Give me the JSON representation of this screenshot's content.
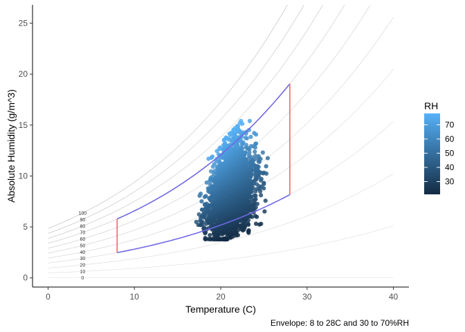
{
  "chart_data": {
    "type": "scatter",
    "title": "",
    "xlabel": "Temperature (C)",
    "ylabel": "Absolute Humidity (g/m^3)",
    "caption": "Envelope: 8 to 28C and 30 to 70%RH",
    "xlim": [
      -1.8,
      41.8
    ],
    "ylim": [
      -0.9,
      26.8
    ],
    "x_ticks": [
      0,
      10,
      20,
      30,
      40
    ],
    "y_ticks": [
      0,
      5,
      10,
      15,
      20,
      25
    ],
    "grid": false,
    "rh_curves": {
      "levels": [
        0,
        10,
        20,
        30,
        40,
        50,
        60,
        70,
        80,
        90,
        100
      ],
      "x_range": [
        0,
        40
      ]
    },
    "envelope": {
      "temperature_range": [
        8,
        28
      ],
      "rh_range": [
        30,
        70
      ],
      "curve_color": "#7068e6",
      "edge_color": "#f0646b"
    },
    "points_summary": {
      "x_range": [
        16,
        26
      ],
      "y_range": [
        3.7,
        15.5
      ],
      "color_variable": "RH"
    },
    "legend": {
      "title": "RH",
      "position": "right",
      "ticks": [
        30,
        40,
        50,
        60,
        70
      ],
      "range": [
        21,
        78
      ],
      "color_low": "#132b43",
      "color_high": "#56b1f7"
    }
  }
}
